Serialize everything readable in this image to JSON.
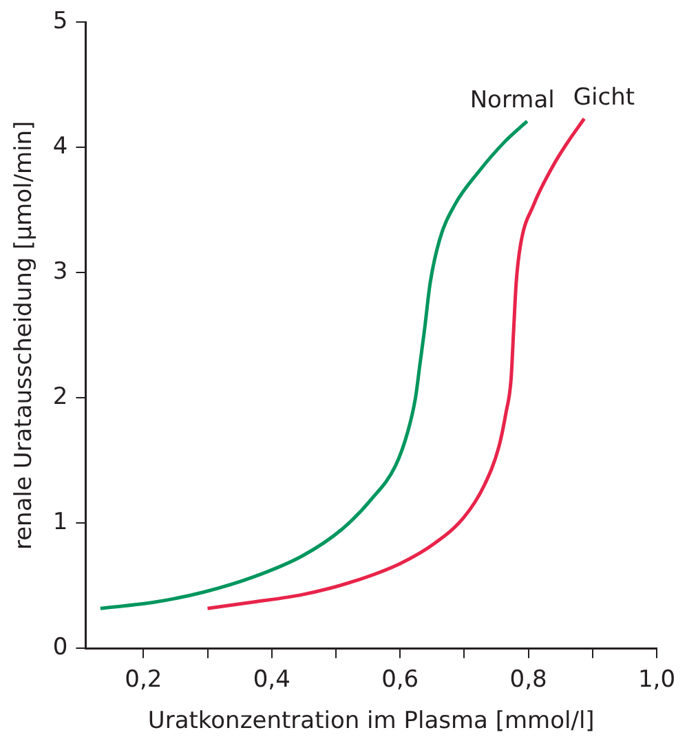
{
  "chart_data": {
    "type": "line",
    "xlabel": "Uratkonzentration im Plasma [mmol/l]",
    "ylabel": "renale Uratausscheidung [µmol/min]",
    "xlim": [
      0.11,
      1.0
    ],
    "xticks": [
      {
        "value": 0.2,
        "label": "0,2"
      },
      {
        "value": 0.3,
        "label": null
      },
      {
        "value": 0.4,
        "label": "0,4"
      },
      {
        "value": 0.5,
        "label": null
      },
      {
        "value": 0.6,
        "label": "0,6"
      },
      {
        "value": 0.7,
        "label": null
      },
      {
        "value": 0.8,
        "label": "0,8"
      },
      {
        "value": 0.9,
        "label": null
      },
      {
        "value": 1.0,
        "label": "1,0"
      }
    ],
    "ylim": [
      0,
      5
    ],
    "yticks": [
      0,
      1,
      2,
      3,
      4,
      5
    ],
    "grid": false,
    "legend": false,
    "marker": "none",
    "line_style": "solid",
    "series": [
      {
        "name": "Normal",
        "color": "#00965e",
        "x": [
          0.133,
          0.218,
          0.294,
          0.371,
          0.448,
          0.509,
          0.555,
          0.593,
          0.612,
          0.624,
          0.631,
          0.638,
          0.647,
          0.662,
          0.685,
          0.723,
          0.762,
          0.798
        ],
        "values": [
          0.32,
          0.37,
          0.45,
          0.57,
          0.74,
          0.95,
          1.19,
          1.46,
          1.73,
          2.0,
          2.27,
          2.54,
          2.92,
          3.27,
          3.54,
          3.81,
          4.04,
          4.21
        ]
      },
      {
        "name": "Gicht",
        "color": "#e8244a",
        "x": [
          0.3,
          0.371,
          0.448,
          0.524,
          0.601,
          0.654,
          0.7,
          0.731,
          0.754,
          0.765,
          0.773,
          0.777,
          0.781,
          0.788,
          0.808,
          0.838,
          0.861,
          0.887
        ],
        "values": [
          0.32,
          0.37,
          0.43,
          0.53,
          0.68,
          0.84,
          1.05,
          1.3,
          1.61,
          1.88,
          2.15,
          2.54,
          2.92,
          3.23,
          3.54,
          3.85,
          4.04,
          4.23
        ]
      }
    ]
  }
}
